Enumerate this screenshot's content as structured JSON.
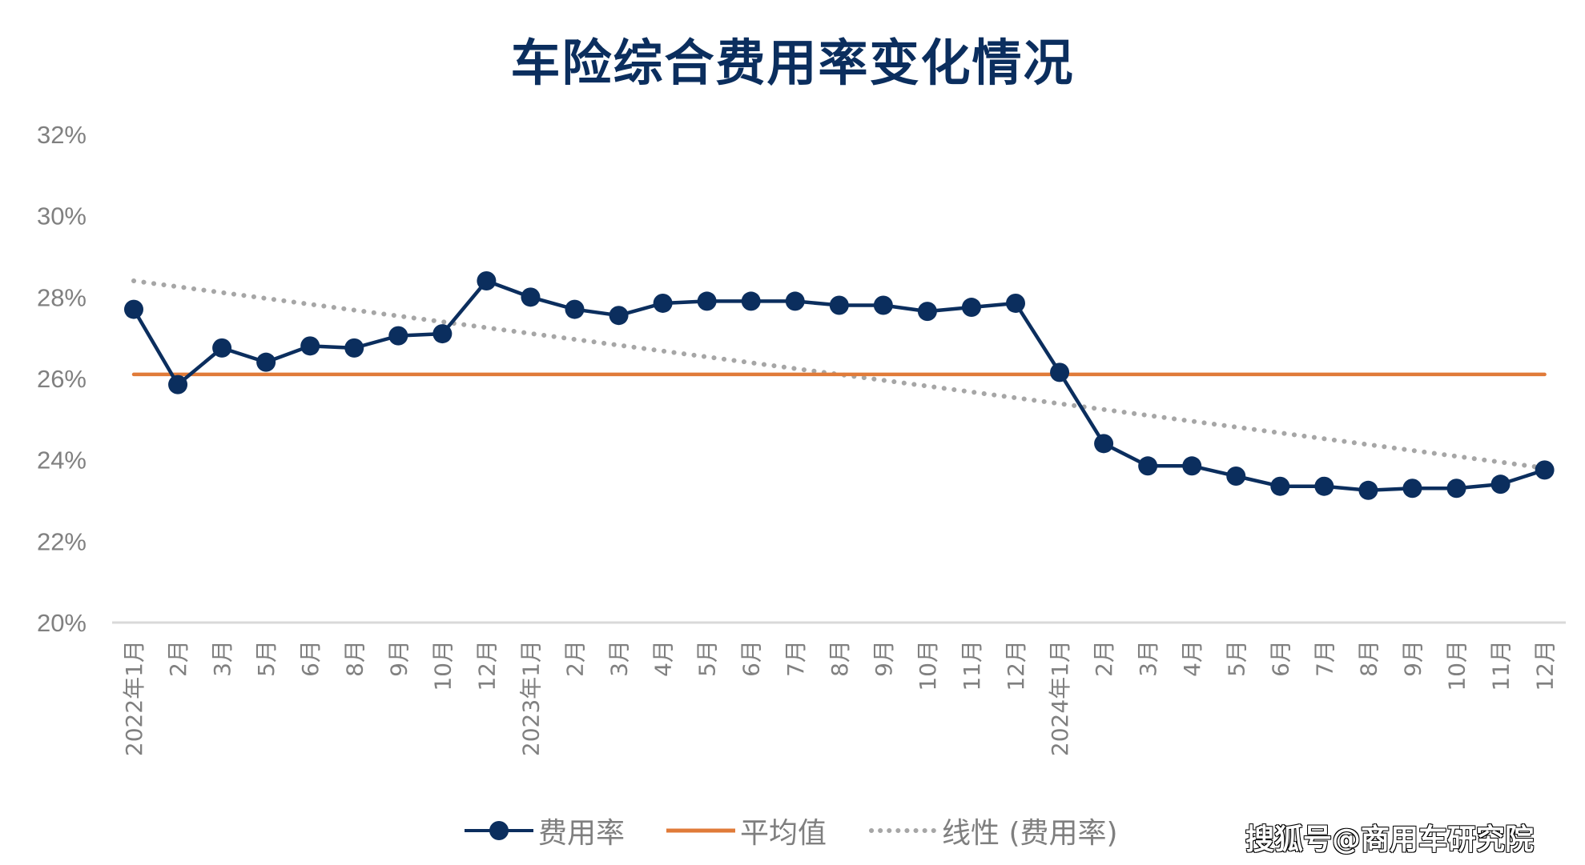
{
  "title": "车险综合费用率变化情况",
  "legend": {
    "series1": "费用率",
    "series2": "平均值",
    "series3": "线性 (费用率)"
  },
  "watermark": "搜狐号@商用车研究院",
  "colors": {
    "series": "#0b2e5e",
    "average": "#e07b39",
    "trend": "#a6a6a6",
    "axis_text": "#808080",
    "title": "#0b2e5e"
  },
  "chart_data": {
    "type": "line",
    "title": "车险综合费用率变化情况",
    "xlabel": "",
    "ylabel": "",
    "ylim": [
      20,
      32
    ],
    "yticks": [
      "20%",
      "22%",
      "24%",
      "26%",
      "28%",
      "30%",
      "32%"
    ],
    "grid": false,
    "legend_position": "bottom",
    "categories": [
      "2022年1月",
      "2月",
      "3月",
      "5月",
      "6月",
      "8月",
      "9月",
      "10月",
      "12月",
      "2023年1月",
      "2月",
      "3月",
      "4月",
      "5月",
      "6月",
      "7月",
      "8月",
      "9月",
      "10月",
      "11月",
      "12月",
      "2024年1月",
      "2月",
      "3月",
      "4月",
      "5月",
      "6月",
      "7月",
      "8月",
      "9月",
      "10月",
      "11月",
      "12月"
    ],
    "series": [
      {
        "name": "费用率",
        "style": "line-marker",
        "values": [
          27.7,
          25.85,
          26.75,
          26.4,
          26.8,
          26.75,
          27.05,
          27.1,
          28.4,
          28.0,
          27.7,
          27.55,
          27.85,
          27.9,
          27.9,
          27.9,
          27.8,
          27.8,
          27.65,
          27.75,
          27.85,
          26.15,
          24.4,
          23.85,
          23.85,
          23.6,
          23.35,
          23.35,
          23.25,
          23.3,
          23.3,
          23.4,
          23.75
        ]
      },
      {
        "name": "平均值",
        "style": "line",
        "values": [
          26.1
        ]
      },
      {
        "name": "线性 (费用率)",
        "style": "dotted",
        "start": 28.4,
        "end": 23.8
      }
    ]
  }
}
